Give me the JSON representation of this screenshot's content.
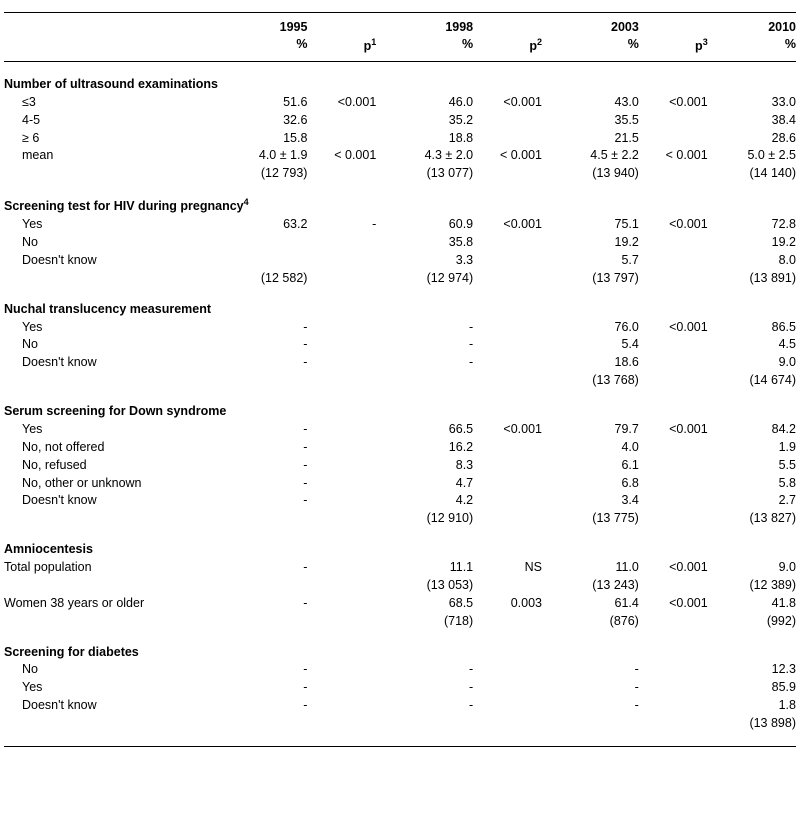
{
  "headers": {
    "y1995": "1995",
    "y1998": "1998",
    "y2003": "2003",
    "y2010": "2010",
    "pct": "%",
    "p1": "p",
    "p2": "p",
    "p3": "p",
    "sup1": "1",
    "sup2": "2",
    "sup3": "3"
  },
  "sections": [
    {
      "title": "Number of ultrasound examinations",
      "rows": [
        {
          "label": "≤3",
          "y1995": "51.6",
          "p1": "<0.001",
          "y1998": "46.0",
          "p2": "<0.001",
          "y2003": "43.0",
          "p3": "<0.001",
          "y2010": "33.0"
        },
        {
          "label": "4-5",
          "y1995": "32.6",
          "p1": "",
          "y1998": "35.2",
          "p2": "",
          "y2003": "35.5",
          "p3": "",
          "y2010": "38.4"
        },
        {
          "label": "≥ 6",
          "y1995": "15.8",
          "p1": "",
          "y1998": "18.8",
          "p2": "",
          "y2003": "21.5",
          "p3": "",
          "y2010": "28.6"
        },
        {
          "label": "mean",
          "y1995": "4.0 ± 1.9",
          "p1": "< 0.001",
          "y1998": "4.3 ± 2.0",
          "p2": "< 0.001",
          "y2003": "4.5 ± 2.2",
          "p3": "< 0.001",
          "y2010": "5.0 ± 2.5"
        },
        {
          "label": "",
          "y1995": "(12 793)",
          "p1": "",
          "y1998": "(13 077)",
          "p2": "",
          "y2003": "(13 940)",
          "p3": "",
          "y2010": "(14 140)"
        }
      ]
    },
    {
      "title": "Screening test for HIV during pregnancy",
      "titleSup": "4",
      "rows": [
        {
          "label": "Yes",
          "y1995": "63.2",
          "p1": "-",
          "y1998": "60.9",
          "p2": "<0.001",
          "y2003": "75.1",
          "p3": "<0.001",
          "y2010": "72.8"
        },
        {
          "label": "No",
          "y1995": "",
          "p1": "",
          "y1998": "35.8",
          "p2": "",
          "y2003": "19.2",
          "p3": "",
          "y2010": "19.2"
        },
        {
          "label": "Doesn't know",
          "y1995": "",
          "p1": "",
          "y1998": "3.3",
          "p2": "",
          "y2003": "5.7",
          "p3": "",
          "y2010": "8.0"
        },
        {
          "label": "",
          "y1995": "(12 582)",
          "p1": "",
          "y1998": "(12 974)",
          "p2": "",
          "y2003": "(13 797)",
          "p3": "",
          "y2010": "(13 891)"
        }
      ]
    },
    {
      "title": "Nuchal translucency measurement",
      "rows": [
        {
          "label": "Yes",
          "y1995": "-",
          "p1": "",
          "y1998": "-",
          "p2": "",
          "y2003": "76.0",
          "p3": "<0.001",
          "y2010": "86.5"
        },
        {
          "label": "No",
          "y1995": "-",
          "p1": "",
          "y1998": "-",
          "p2": "",
          "y2003": "5.4",
          "p3": "",
          "y2010": "4.5"
        },
        {
          "label": "Doesn't know",
          "y1995": "-",
          "p1": "",
          "y1998": "-",
          "p2": "",
          "y2003": "18.6",
          "p3": "",
          "y2010": "9.0"
        },
        {
          "label": "",
          "y1995": "",
          "p1": "",
          "y1998": "",
          "p2": "",
          "y2003": "(13 768)",
          "p3": "",
          "y2010": "(14 674)"
        }
      ]
    },
    {
      "title": "Serum screening for Down syndrome",
      "rows": [
        {
          "label": "Yes",
          "y1995": "-",
          "p1": "",
          "y1998": "66.5",
          "p2": "<0.001",
          "y2003": "79.7",
          "p3": "<0.001",
          "y2010": "84.2"
        },
        {
          "label": "No, not offered",
          "y1995": "-",
          "p1": "",
          "y1998": "16.2",
          "p2": "",
          "y2003": "4.0",
          "p3": "",
          "y2010": "1.9"
        },
        {
          "label": "No, refused",
          "y1995": "-",
          "p1": "",
          "y1998": "8.3",
          "p2": "",
          "y2003": "6.1",
          "p3": "",
          "y2010": "5.5"
        },
        {
          "label": "No, other or unknown",
          "y1995": "-",
          "p1": "",
          "y1998": "4.7",
          "p2": "",
          "y2003": "6.8",
          "p3": "",
          "y2010": "5.8"
        },
        {
          "label": "Doesn't know",
          "y1995": "-",
          "p1": "",
          "y1998": "4.2",
          "p2": "",
          "y2003": "3.4",
          "p3": "",
          "y2010": "2.7"
        },
        {
          "label": "",
          "y1995": "",
          "p1": "",
          "y1998": "(12 910)",
          "p2": "",
          "y2003": "(13 775)",
          "p3": "",
          "y2010": "(13 827)"
        }
      ]
    },
    {
      "title": "Amniocentesis",
      "labelFlush": true,
      "rows": [
        {
          "label": "Total population",
          "y1995": "-",
          "p1": "",
          "y1998": "11.1",
          "p2": "NS",
          "y2003": "11.0",
          "p3": "<0.001",
          "y2010": "9.0"
        },
        {
          "label": "",
          "y1995": "",
          "p1": "",
          "y1998": "(13 053)",
          "p2": "",
          "y2003": "(13 243)",
          "p3": "",
          "y2010": "(12 389)"
        },
        {
          "label": "Women 38 years or older",
          "y1995": "-",
          "p1": "",
          "y1998": "68.5",
          "p2": "0.003",
          "y2003": "61.4",
          "p3": "<0.001",
          "y2010": "41.8"
        },
        {
          "label": "",
          "y1995": "",
          "p1": "",
          "y1998": "(718)",
          "p2": "",
          "y2003": "(876)",
          "p3": "",
          "y2010": "(992)"
        }
      ]
    },
    {
      "title": "Screening for diabetes",
      "rows": [
        {
          "label": "No",
          "y1995": "-",
          "p1": "",
          "y1998": "-",
          "p2": "",
          "y2003": "-",
          "p3": "",
          "y2010": "12.3"
        },
        {
          "label": "Yes",
          "y1995": "-",
          "p1": "",
          "y1998": "-",
          "p2": "",
          "y2003": "-",
          "p3": "",
          "y2010": "85.9"
        },
        {
          "label": "Doesn't know",
          "y1995": "-",
          "p1": "",
          "y1998": "-",
          "p2": "",
          "y2003": "-",
          "p3": "",
          "y2010": "1.8"
        },
        {
          "label": "",
          "y1995": "",
          "p1": "",
          "y1998": "",
          "p2": "",
          "y2003": "",
          "p3": "",
          "y2010": "(13 898)"
        }
      ]
    }
  ]
}
